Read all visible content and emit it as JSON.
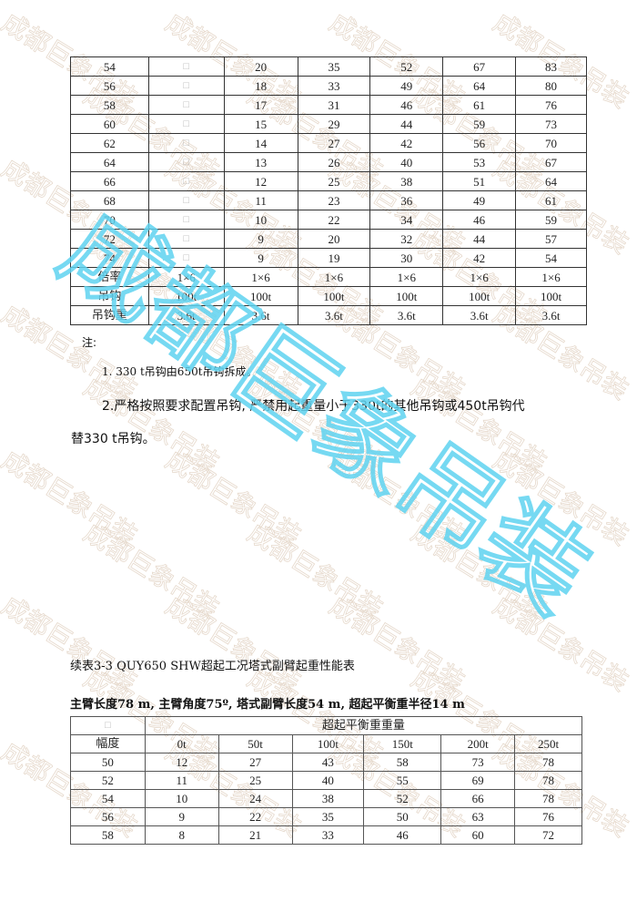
{
  "watermark": {
    "text": "成都巨象吊装",
    "tile_color": "#e6d9cc",
    "main_color": "#5fd3f0"
  },
  "table1": {
    "rows": [
      [
        "54",
        "□",
        "20",
        "35",
        "52",
        "67",
        "83"
      ],
      [
        "56",
        "□",
        "18",
        "33",
        "49",
        "64",
        "80"
      ],
      [
        "58",
        "□",
        "17",
        "31",
        "46",
        "61",
        "76"
      ],
      [
        "60",
        "□",
        "15",
        "29",
        "44",
        "59",
        "73"
      ],
      [
        "62",
        "□",
        "14",
        "27",
        "42",
        "56",
        "70"
      ],
      [
        "64",
        "□",
        "13",
        "26",
        "40",
        "53",
        "67"
      ],
      [
        "66",
        "□",
        "12",
        "25",
        "38",
        "51",
        "64"
      ],
      [
        "68",
        "□",
        "11",
        "23",
        "36",
        "49",
        "61"
      ],
      [
        "70",
        "□",
        "10",
        "22",
        "34",
        "46",
        "59"
      ],
      [
        "72",
        "□",
        "9",
        "20",
        "32",
        "44",
        "57"
      ],
      [
        "74",
        "□",
        "9",
        "19",
        "30",
        "42",
        "54"
      ]
    ],
    "footer_rows": [
      [
        "倍率",
        "1×6",
        "1×6",
        "1×6",
        "1×6",
        "1×6",
        "1×6"
      ],
      [
        "吊钩",
        "100t",
        "100t",
        "100t",
        "100t",
        "100t",
        "100t"
      ],
      [
        "吊钩重",
        "3.6t",
        "3.6t",
        "3.6t",
        "3.6t",
        "3.6t",
        "3.6t"
      ]
    ]
  },
  "notes": {
    "title": "注:",
    "item1": "1. 330 t吊钩由650t吊钩拆成。",
    "item2": "2.严格按照要求配置吊钩, 严禁用起重量小于330t的其他吊钩或450t吊钩代",
    "item2_cont": "替330  t吊钩。"
  },
  "caption": "续表3-3 QUY650 SHW超起工况塔式副臂起重性能表",
  "subcaption": "主臂长度78 m, 主臂角度75º, 塔式副臂长度54 m, 超起平衡重半径14 m",
  "table2": {
    "corner": "□",
    "group_header": "超起平衡重重量",
    "row_header": "幅度",
    "columns": [
      "0t",
      "50t",
      "100t",
      "150t",
      "200t",
      "250t"
    ],
    "rows": [
      [
        "50",
        "12",
        "27",
        "43",
        "58",
        "73",
        "78"
      ],
      [
        "52",
        "11",
        "25",
        "40",
        "55",
        "69",
        "78"
      ],
      [
        "54",
        "10",
        "24",
        "38",
        "52",
        "66",
        "78"
      ],
      [
        "56",
        "9",
        "22",
        "35",
        "50",
        "63",
        "76"
      ],
      [
        "58",
        "8",
        "21",
        "33",
        "46",
        "60",
        "72"
      ]
    ]
  }
}
